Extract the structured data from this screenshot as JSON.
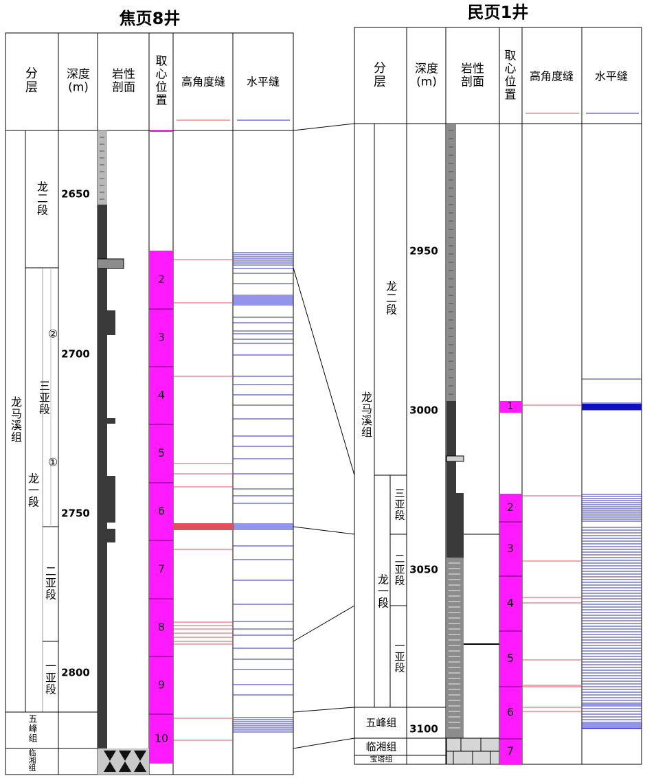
{
  "wells": [
    {
      "id": "jy8",
      "title": "焦页8井",
      "headers": {
        "strata": "分层",
        "depth": "深度\n(m)",
        "lith": "岩性\n剖面",
        "core": "取心\n位置",
        "high": "高角度缝",
        "horiz": "水平缝"
      },
      "depth_ticks": [
        "2650",
        "2700",
        "2750",
        "2800"
      ],
      "formation": "龙马溪组",
      "members": [
        "龙二段",
        "龙一段"
      ],
      "submembers": [
        "三亚段",
        "二亚段",
        "一亚段"
      ],
      "sub_markers": [
        "②",
        "①"
      ],
      "lower_units": [
        "五峰组",
        "临湘组"
      ],
      "core_labels": [
        "2",
        "3",
        "4",
        "5",
        "6",
        "7",
        "8",
        "9",
        "10"
      ]
    },
    {
      "id": "mg1",
      "title": "民页1井",
      "headers": {
        "strata": "分层",
        "depth": "深度\n(m)",
        "lith": "岩性\n剖面",
        "core": "取心\n位置",
        "high": "高角度缝",
        "horiz": "水平缝"
      },
      "depth_ticks": [
        "2950",
        "3000",
        "3050",
        "3100"
      ],
      "formation": "龙马溪组",
      "members": [
        "龙二段",
        "龙一段"
      ],
      "submembers": [
        "三亚段",
        "二亚段",
        "一亚段"
      ],
      "lower_units": [
        "五峰组",
        "临湘组",
        "宝塔组"
      ],
      "core_labels": [
        "1",
        "2",
        "3",
        "4",
        "5",
        "6",
        "7"
      ]
    }
  ],
  "colors": {
    "core": "#ff1aff",
    "high_angle": "#e0505a",
    "horizontal": "#2a2ad0",
    "shale": "#3a3a3a",
    "silt": "#8c8c8c",
    "light": "#b8b8b8"
  }
}
